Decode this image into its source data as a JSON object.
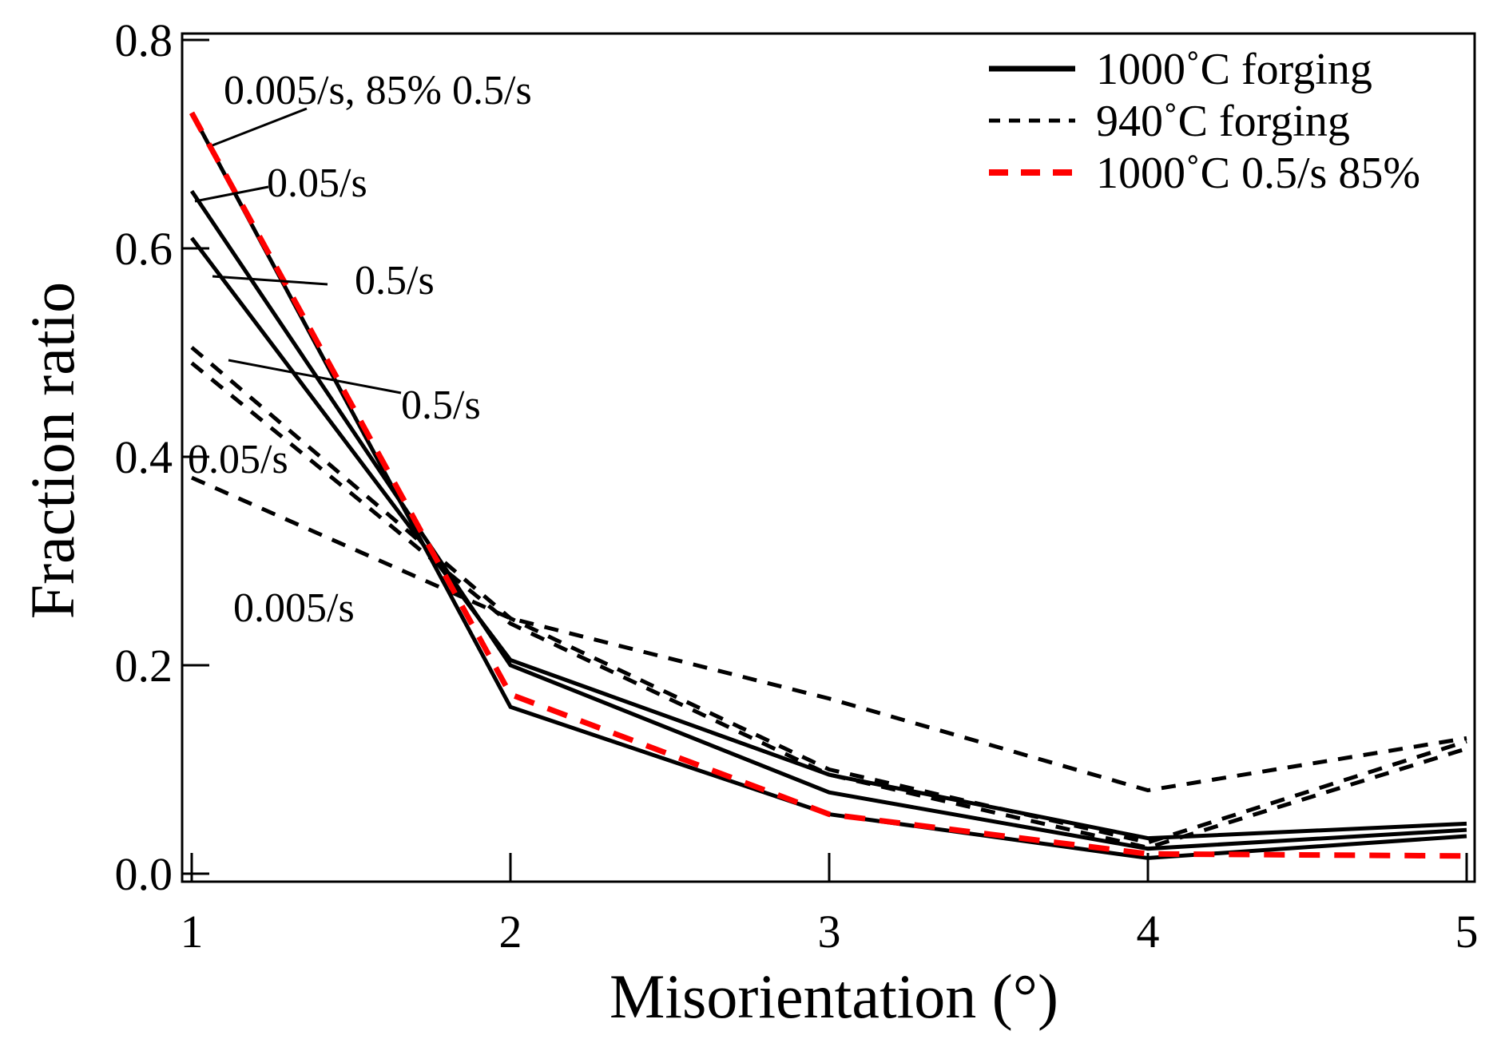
{
  "chart_data": {
    "type": "line",
    "title": "",
    "xlabel": "Misorientation (°)",
    "ylabel": "Fraction ratio",
    "xlim": [
      1,
      5
    ],
    "ylim": [
      0,
      0.8
    ],
    "xticks": [
      1,
      2,
      3,
      4,
      5
    ],
    "xtick_labels": [
      "1",
      "2",
      "3",
      "4",
      "5"
    ],
    "yticks": [
      0,
      0.2,
      0.4,
      0.6,
      0.8
    ],
    "ytick_labels": [
      "0.0",
      "0.2",
      "0.4",
      "0.6",
      "0.8"
    ],
    "grid": false,
    "legend_position": "top-right",
    "x": [
      1,
      2,
      3,
      4,
      5
    ],
    "legend": [
      {
        "label": "1000˚C forging",
        "style": "solid",
        "color": "#000000"
      },
      {
        "label": "940˚C forging",
        "style": "dashed",
        "color": "#000000"
      },
      {
        "label": "1000˚C 0.5/s 85%",
        "style": "dashed",
        "color": "#ff0000"
      }
    ],
    "series": [
      {
        "name": "1000˚C forging 0.005/s",
        "style": "solid",
        "color": "#000000",
        "values": [
          0.73,
          0.16,
          0.057,
          0.015,
          0.036
        ]
      },
      {
        "name": "1000˚C forging 0.05/s",
        "style": "solid",
        "color": "#000000",
        "values": [
          0.655,
          0.2,
          0.078,
          0.024,
          0.042
        ]
      },
      {
        "name": "1000˚C forging 0.5/s",
        "style": "solid",
        "color": "#000000",
        "values": [
          0.61,
          0.205,
          0.095,
          0.034,
          0.048
        ]
      },
      {
        "name": "940˚C forging 0.5/s",
        "style": "dashed",
        "color": "#000000",
        "values": [
          0.505,
          0.245,
          0.1,
          0.03,
          0.127
        ]
      },
      {
        "name": "940˚C forging 0.05/s",
        "style": "dashed",
        "color": "#000000",
        "values": [
          0.49,
          0.24,
          0.095,
          0.025,
          0.12
        ]
      },
      {
        "name": "940˚C forging 0.005/s",
        "style": "dashed",
        "color": "#000000",
        "values": [
          0.38,
          0.245,
          0.168,
          0.08,
          0.13
        ]
      },
      {
        "name": "1000˚C 0.5/s 85%",
        "style": "dashed",
        "color": "#ff0000",
        "values": [
          0.73,
          0.172,
          0.057,
          0.019,
          0.017
        ]
      }
    ],
    "annotations": [
      {
        "text": "0.005/s,  85% 0.5/s"
      },
      {
        "text": "0.05/s"
      },
      {
        "text": "0.5/s"
      },
      {
        "text": "0.5/s"
      },
      {
        "text": "0.05/s"
      },
      {
        "text": "0.005/s"
      }
    ]
  }
}
